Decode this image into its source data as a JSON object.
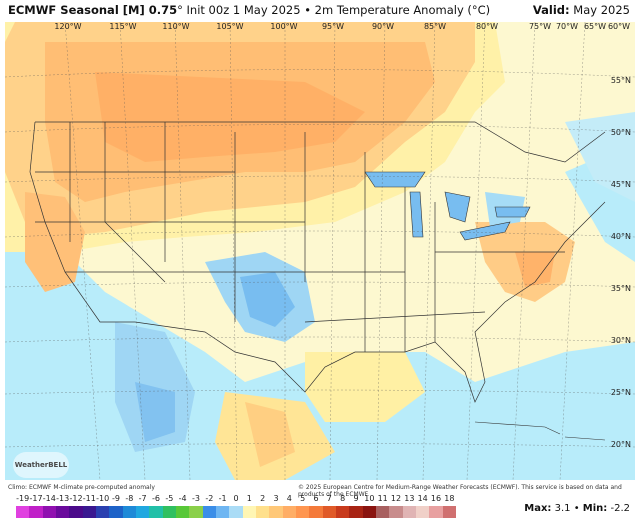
{
  "header": {
    "title_bold": "ECMWF Seasonal [M] 0.75",
    "title_rest": "° Init 00z 1 May 2025 • 2m Temperature Anomaly (°C)",
    "valid_label": "Valid:",
    "valid_value": "May 2025"
  },
  "map": {
    "lon_labels": [
      "120°W",
      "115°W",
      "110°W",
      "105°W",
      "100°W",
      "95°W",
      "90°W",
      "85°W",
      "80°W",
      "75°W",
      "70°W",
      "65°W",
      "60°W"
    ],
    "lat_labels": [
      "55°N",
      "50°N",
      "45°N",
      "40°N",
      "35°N",
      "30°N",
      "25°N",
      "20°N"
    ],
    "logo_text": "WeatherBELL"
  },
  "footer": {
    "left_text": "Climo: ECMWF M-climate pre-computed anomaly",
    "right_text": "© 2025 European Centre for Medium-Range Weather Forecasts (ECMWF). This service is based on data and products of the ECMWF."
  },
  "scale": {
    "labels": [
      "-19",
      "-17",
      "-14",
      "-13",
      "-12",
      "-11",
      "-10",
      "-9",
      "-8",
      "-7",
      "-6",
      "-5",
      "-4",
      "-3",
      "-2",
      "-1",
      "0",
      "1",
      "2",
      "3",
      "4",
      "5",
      "6",
      "7",
      "8",
      "9",
      "10",
      "11",
      "12",
      "13",
      "14",
      "16",
      "18"
    ],
    "colors": [
      "#e040e0",
      "#c020c8",
      "#9010b0",
      "#6a0a9c",
      "#4b0a8a",
      "#3a1890",
      "#2a40b0",
      "#1d62c8",
      "#1e8ad8",
      "#20a8e0",
      "#22c0a8",
      "#30c060",
      "#58c838",
      "#8ad04a",
      "#3b8ee8",
      "#6eb6f2",
      "#aadcf6",
      "#fff6b4",
      "#ffe08c",
      "#ffc878",
      "#ffae66",
      "#ff9650",
      "#f47a3a",
      "#e05a28",
      "#c83a1c",
      "#a82414",
      "#8a1410",
      "#a86060",
      "#c88c8c",
      "#e0b4b4",
      "#f0d0c8",
      "#e8a0a0",
      "#d07070"
    ]
  },
  "stats": {
    "max_label": "Max:",
    "max_value": "3.1",
    "sep": "•",
    "min_label": "Min:",
    "min_value": "-2.2"
  }
}
